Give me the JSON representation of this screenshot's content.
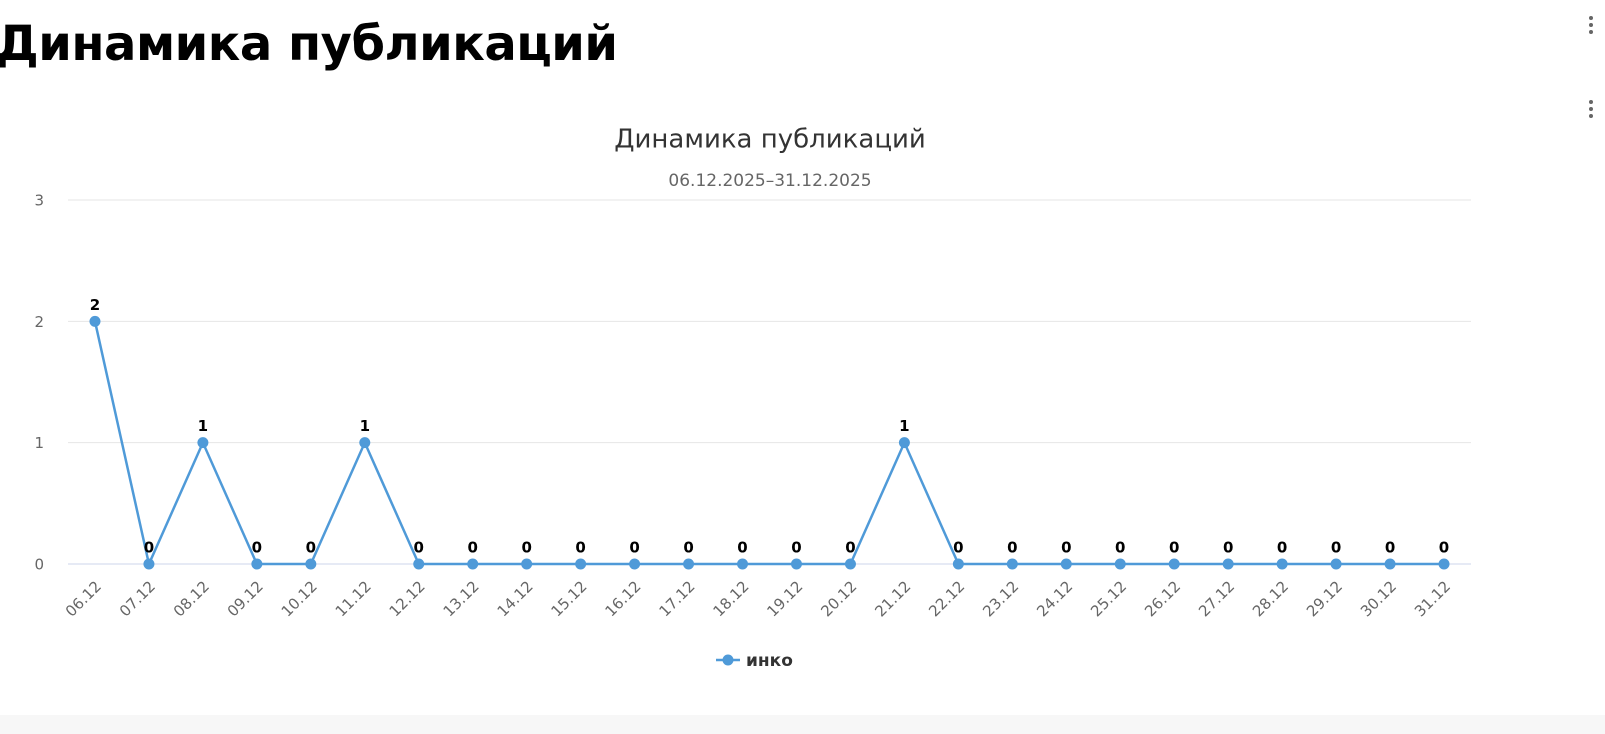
{
  "header": {
    "title": "Динамика публикаций"
  },
  "chart_data": {
    "type": "line",
    "title": "Динамика публикаций",
    "subtitle": "06.12.2025–31.12.2025",
    "categories": [
      "06.12",
      "07.12",
      "08.12",
      "09.12",
      "10.12",
      "11.12",
      "12.12",
      "13.12",
      "14.12",
      "15.12",
      "16.12",
      "17.12",
      "18.12",
      "19.12",
      "20.12",
      "21.12",
      "22.12",
      "23.12",
      "24.12",
      "25.12",
      "26.12",
      "27.12",
      "28.12",
      "29.12",
      "30.12",
      "31.12"
    ],
    "series": [
      {
        "name": "инко",
        "color": "#4f9ad8",
        "values": [
          2,
          0,
          1,
          0,
          0,
          1,
          0,
          0,
          0,
          0,
          0,
          0,
          0,
          0,
          0,
          1,
          0,
          0,
          0,
          0,
          0,
          0,
          0,
          0,
          0,
          0
        ]
      }
    ],
    "ylim": [
      0,
      3
    ],
    "yticks": [
      0,
      1,
      2,
      3
    ],
    "grid": true,
    "legend": "bottom"
  }
}
